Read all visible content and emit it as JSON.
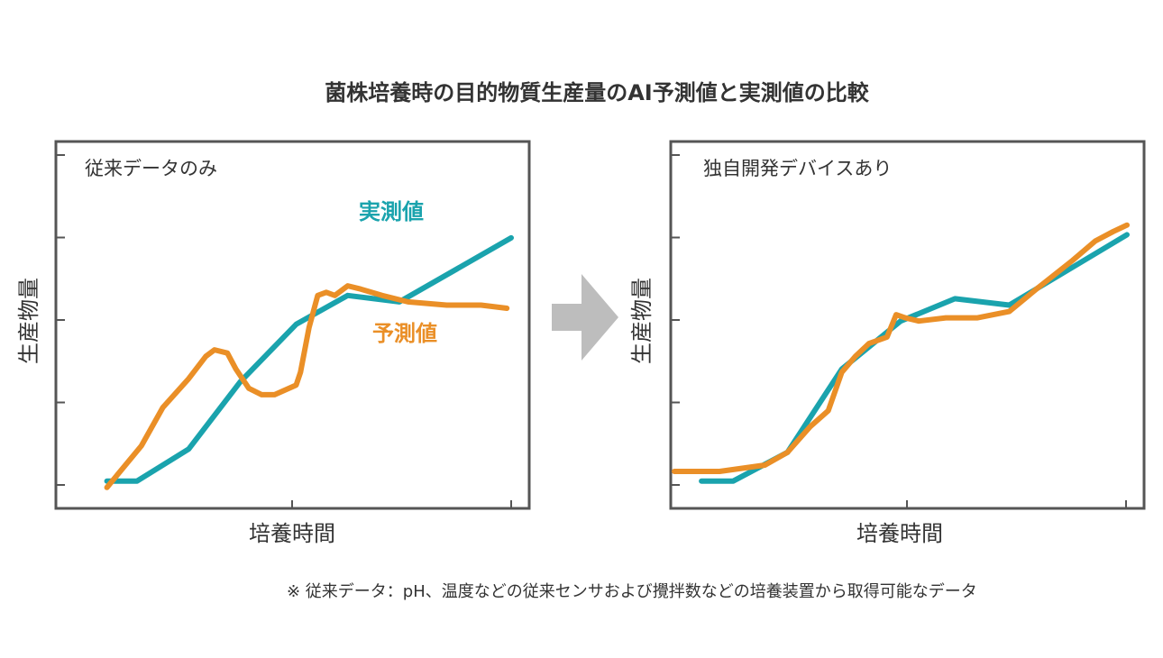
{
  "title": "菌株培養時の目的物質生産量のAI予測値と実測値の比較",
  "footnote": "※ 従来データ：pH、温度などの従来センサおよび攪拌数などの培養装置から取得可能なデータ",
  "colors": {
    "actual": "#1aa3ad",
    "predicted": "#ea8f27",
    "frame": "#555555",
    "arrow": "#bdbdbd",
    "text": "#333333"
  },
  "icons": {
    "arrow": "right-arrow-icon"
  },
  "chart_data": [
    {
      "type": "line",
      "panel_label": "従来データのみ",
      "xlabel": "培養時間",
      "ylabel": "生産物量",
      "xlim": [
        0,
        1
      ],
      "ylim": [
        0,
        1
      ],
      "grid": false,
      "y_tick_count": 5,
      "x_tick_count": 1,
      "series": [
        {
          "name": "実測値",
          "color": "#1aa3ad",
          "points": [
            [
              0.06,
              0.06
            ],
            [
              0.13,
              0.06
            ],
            [
              0.25,
              0.16
            ],
            [
              0.37,
              0.37
            ],
            [
              0.5,
              0.55
            ],
            [
              0.62,
              0.64
            ],
            [
              0.74,
              0.62
            ],
            [
              1.0,
              0.82
            ]
          ]
        },
        {
          "name": "予測値",
          "color": "#ea8f27",
          "points": [
            [
              0.06,
              0.04
            ],
            [
              0.14,
              0.17
            ],
            [
              0.19,
              0.29
            ],
            [
              0.25,
              0.38
            ],
            [
              0.29,
              0.45
            ],
            [
              0.31,
              0.47
            ],
            [
              0.34,
              0.46
            ],
            [
              0.36,
              0.41
            ],
            [
              0.39,
              0.35
            ],
            [
              0.42,
              0.33
            ],
            [
              0.45,
              0.33
            ],
            [
              0.5,
              0.36
            ],
            [
              0.51,
              0.4
            ],
            [
              0.53,
              0.54
            ],
            [
              0.55,
              0.64
            ],
            [
              0.57,
              0.65
            ],
            [
              0.59,
              0.64
            ],
            [
              0.62,
              0.67
            ],
            [
              0.65,
              0.66
            ],
            [
              0.7,
              0.64
            ],
            [
              0.76,
              0.62
            ],
            [
              0.85,
              0.61
            ],
            [
              0.93,
              0.61
            ],
            [
              0.99,
              0.6
            ]
          ]
        }
      ],
      "annotations": [
        {
          "text": "実測値",
          "series": "実測値"
        },
        {
          "text": "予測値",
          "series": "予測値"
        }
      ]
    },
    {
      "type": "line",
      "panel_label": "独自開発デバイスあり",
      "xlabel": "培養時間",
      "ylabel": "生産物量",
      "xlim": [
        0,
        1
      ],
      "ylim": [
        0,
        1
      ],
      "grid": false,
      "y_tick_count": 5,
      "x_tick_count": 1,
      "series": [
        {
          "name": "実測値",
          "color": "#1aa3ad",
          "points": [
            [
              0.06,
              0.06
            ],
            [
              0.13,
              0.06
            ],
            [
              0.25,
              0.15
            ],
            [
              0.37,
              0.41
            ],
            [
              0.5,
              0.56
            ],
            [
              0.62,
              0.63
            ],
            [
              0.74,
              0.61
            ],
            [
              1.0,
              0.83
            ]
          ]
        },
        {
          "name": "予測値",
          "color": "#ea8f27",
          "points": [
            [
              0.0,
              0.09
            ],
            [
              0.1,
              0.09
            ],
            [
              0.2,
              0.11
            ],
            [
              0.25,
              0.15
            ],
            [
              0.3,
              0.23
            ],
            [
              0.34,
              0.28
            ],
            [
              0.37,
              0.4
            ],
            [
              0.4,
              0.45
            ],
            [
              0.43,
              0.49
            ],
            [
              0.47,
              0.51
            ],
            [
              0.49,
              0.58
            ],
            [
              0.51,
              0.57
            ],
            [
              0.54,
              0.56
            ],
            [
              0.6,
              0.57
            ],
            [
              0.67,
              0.57
            ],
            [
              0.74,
              0.59
            ],
            [
              0.8,
              0.66
            ],
            [
              0.88,
              0.75
            ],
            [
              0.93,
              0.81
            ],
            [
              0.97,
              0.84
            ],
            [
              1.0,
              0.86
            ]
          ]
        }
      ],
      "annotations": []
    }
  ]
}
